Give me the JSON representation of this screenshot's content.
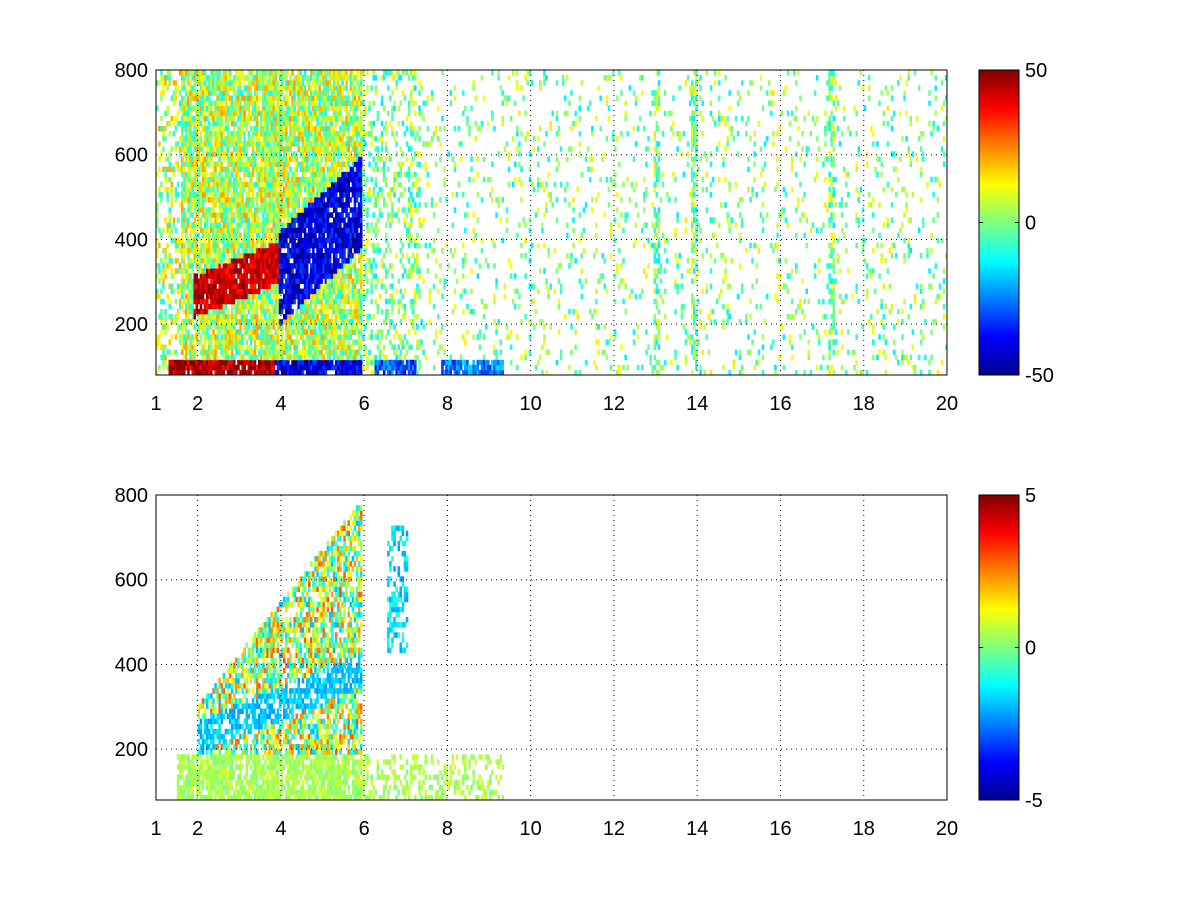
{
  "chart_data": [
    {
      "type": "heatmap",
      "panel": "top",
      "title": "",
      "xlabel": "",
      "ylabel": "",
      "xlim": [
        1,
        20
      ],
      "ylim": [
        80,
        800
      ],
      "x_ticks": [
        "1",
        "2",
        "4",
        "6",
        "8",
        "10",
        "12",
        "14",
        "16",
        "18",
        "20"
      ],
      "y_ticks": [
        "200",
        "400",
        "600",
        "800"
      ],
      "grid": true,
      "grid_style": "dotted",
      "colormap": "jet",
      "colorbar": {
        "min": -50,
        "max": 50,
        "ticks": [
          "50",
          "0",
          "-50"
        ],
        "placement": "right"
      },
      "description_values": {
        "low_band_y": [
          80,
          110
        ],
        "low_band_x_ranges": [
          [
            1.3,
            3.8,
            45
          ],
          [
            3.8,
            5.9,
            -40
          ],
          [
            6.2,
            7.2,
            -30
          ],
          [
            7.8,
            9.3,
            -25
          ]
        ],
        "ridge_positive": {
          "x": [
            1.9,
            3.9
          ],
          "y_start": 260,
          "y_end": 340,
          "value": 42
        },
        "ridge_negative": {
          "x": [
            3.9,
            5.9
          ],
          "y_start": 300,
          "y_end": 480,
          "value": -40
        },
        "dense_region_x": [
          1,
          5.9
        ],
        "sparse_region_x": [
          5.9,
          20
        ],
        "sparse_value_range": [
          -15,
          15
        ],
        "columns": [
          13.0,
          13.9,
          17.2
        ]
      }
    },
    {
      "type": "heatmap",
      "panel": "bottom",
      "title": "",
      "xlabel": "",
      "ylabel": "",
      "xlim": [
        1,
        20
      ],
      "ylim": [
        80,
        800
      ],
      "x_ticks": [
        "1",
        "2",
        "4",
        "6",
        "8",
        "10",
        "12",
        "14",
        "16",
        "18",
        "20"
      ],
      "y_ticks": [
        "200",
        "400",
        "600",
        "800"
      ],
      "grid": true,
      "grid_style": "dotted",
      "colormap": "jet",
      "colorbar": {
        "min": -5,
        "max": 5,
        "ticks": [
          "5",
          "0",
          "-5"
        ],
        "placement": "right"
      },
      "description_values": {
        "low_band_y": [
          80,
          180
        ],
        "low_band_x": [
          1.5,
          9.3
        ],
        "low_band_value": 0.4,
        "main_region_x": [
          2.0,
          5.9
        ],
        "main_region_value_range": [
          -2,
          3
        ],
        "ridge_negative": {
          "x": [
            2.2,
            5.9
          ],
          "y_start": 230,
          "y_end": 380,
          "value": -1.8
        },
        "isolated_cluster": {
          "x": [
            6.5,
            7.0
          ],
          "y": [
            420,
            720
          ],
          "value": -1.5
        }
      }
    }
  ]
}
